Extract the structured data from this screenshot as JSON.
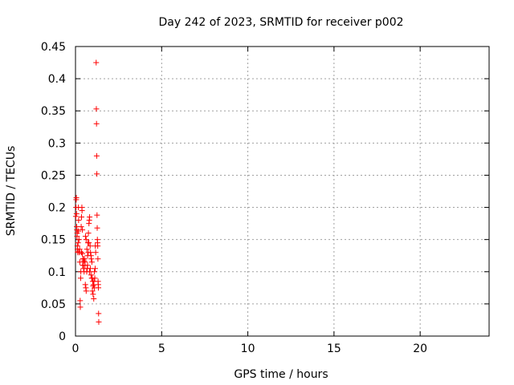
{
  "chart_data": {
    "type": "scatter",
    "title": "Day 242 of 2023, SRMTID for receiver p002",
    "xlabel": "GPS time / hours",
    "ylabel": "SRMTID / TECUs",
    "xlim": [
      0,
      24
    ],
    "ylim": [
      0,
      0.45
    ],
    "xticks": [
      0,
      5,
      10,
      15,
      20
    ],
    "xtick_labels": [
      "0",
      "5",
      "10",
      "15",
      "20"
    ],
    "yticks": [
      0,
      0.05,
      0.1,
      0.15,
      0.2,
      0.25,
      0.3,
      0.35,
      0.4,
      0.45
    ],
    "ytick_labels": [
      "0",
      "0.05",
      "0.1",
      "0.15",
      "0.2",
      "0.25",
      "0.3",
      "0.35",
      "0.4",
      "0.45"
    ],
    "grid": true,
    "marker": "+",
    "color": "#ff0000",
    "series": [
      {
        "name": "SRMTID",
        "x": [
          0.02,
          0.03,
          0.04,
          0.05,
          0.06,
          0.07,
          0.08,
          0.09,
          0.1,
          0.11,
          0.12,
          0.13,
          0.14,
          0.15,
          0.16,
          0.17,
          0.18,
          0.2,
          0.22,
          0.24,
          0.25,
          0.27,
          0.28,
          0.3,
          0.31,
          0.33,
          0.35,
          0.37,
          0.38,
          0.4,
          0.42,
          0.43,
          0.45,
          0.47,
          0.5,
          0.52,
          0.55,
          0.57,
          0.6,
          0.62,
          0.65,
          0.68,
          0.7,
          0.72,
          0.75,
          0.78,
          0.8,
          0.82,
          0.85,
          0.87,
          0.9,
          0.92,
          0.95,
          0.97,
          1.0,
          1.02,
          1.05,
          1.07,
          1.1,
          1.12,
          1.15,
          1.17,
          1.2,
          1.21,
          1.22,
          1.23,
          1.24,
          1.25,
          1.26,
          1.27,
          1.28,
          1.29,
          1.3,
          1.31,
          1.32,
          1.33,
          1.34,
          1.35,
          0.58,
          0.62,
          0.66,
          0.7,
          0.74,
          0.78,
          0.82,
          0.86,
          0.9,
          0.94,
          0.98,
          1.02,
          1.06,
          1.1,
          1.14,
          0.35,
          0.4,
          0.45,
          0.5,
          0.55
        ],
        "y": [
          0.186,
          0.2,
          0.212,
          0.215,
          0.19,
          0.17,
          0.165,
          0.155,
          0.16,
          0.14,
          0.135,
          0.13,
          0.132,
          0.145,
          0.163,
          0.2,
          0.18,
          0.15,
          0.13,
          0.135,
          0.115,
          0.055,
          0.045,
          0.09,
          0.1,
          0.17,
          0.185,
          0.2,
          0.195,
          0.165,
          0.11,
          0.12,
          0.11,
          0.105,
          0.1,
          0.12,
          0.11,
          0.08,
          0.075,
          0.07,
          0.1,
          0.105,
          0.11,
          0.145,
          0.16,
          0.175,
          0.18,
          0.185,
          0.14,
          0.13,
          0.125,
          0.12,
          0.115,
          0.09,
          0.085,
          0.078,
          0.08,
          0.085,
          0.075,
          0.09,
          0.14,
          0.13,
          0.425,
          0.353,
          0.33,
          0.28,
          0.252,
          0.188,
          0.168,
          0.15,
          0.145,
          0.14,
          0.12,
          0.085,
          0.08,
          0.075,
          0.035,
          0.022,
          0.155,
          0.15,
          0.135,
          0.125,
          0.13,
          0.145,
          0.1,
          0.105,
          0.095,
          0.09,
          0.07,
          0.065,
          0.058,
          0.1,
          0.105,
          0.13,
          0.128,
          0.12,
          0.117,
          0.115
        ]
      }
    ]
  }
}
